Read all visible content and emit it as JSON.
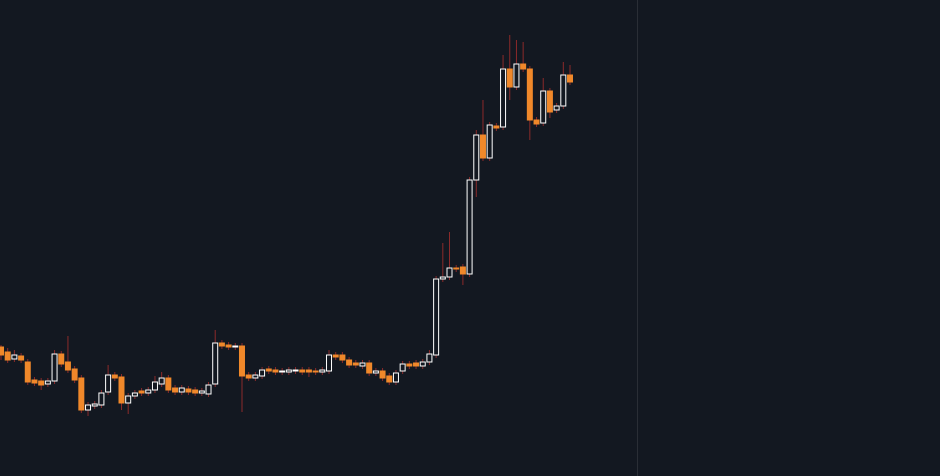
{
  "chart_data": {
    "type": "candlestick",
    "ylim": [
      0,
      476
    ],
    "up_color": "#ffffff",
    "down_color": "#f0882a",
    "wick_color": "#8b2a2a",
    "open": [
      129,
      124,
      117,
      120,
      114,
      96,
      95,
      92,
      95,
      122,
      114,
      107,
      98,
      66,
      70,
      71,
      84,
      101,
      99,
      73,
      80,
      85,
      83,
      86,
      92,
      98,
      88,
      84,
      87,
      86,
      83,
      82,
      92,
      133,
      131,
      129,
      130,
      101,
      98,
      100,
      107,
      106,
      104,
      104,
      105,
      106,
      106,
      105,
      104,
      105,
      121,
      121,
      116,
      113,
      110,
      113,
      103,
      105,
      100,
      94,
      105,
      112,
      113,
      110,
      114,
      121,
      197,
      199,
      208,
      209,
      202,
      296,
      341,
      318,
      350,
      349,
      407,
      389,
      412,
      407,
      356,
      353,
      385,
      366,
      370,
      401
    ],
    "high": [
      131,
      128,
      126,
      123,
      117,
      99,
      98,
      98,
      126,
      125,
      140,
      110,
      101,
      74,
      75,
      86,
      111,
      104,
      102,
      83,
      86,
      88,
      89,
      100,
      104,
      101,
      91,
      91,
      90,
      89,
      88,
      94,
      146,
      136,
      134,
      133,
      133,
      104,
      104,
      109,
      110,
      109,
      108,
      109,
      109,
      109,
      109,
      108,
      109,
      126,
      124,
      124,
      119,
      116,
      116,
      116,
      108,
      108,
      103,
      106,
      115,
      115,
      116,
      117,
      126,
      200,
      233,
      244,
      211,
      212,
      299,
      346,
      376,
      354,
      353,
      421,
      441,
      436,
      434,
      410,
      359,
      398,
      388,
      373,
      414,
      411
    ],
    "low": [
      116,
      113,
      114,
      113,
      91,
      90,
      86,
      89,
      92,
      109,
      103,
      93,
      63,
      60,
      67,
      68,
      81,
      95,
      66,
      62,
      77,
      80,
      80,
      83,
      89,
      83,
      81,
      81,
      81,
      80,
      80,
      79,
      89,
      127,
      126,
      126,
      64,
      95,
      95,
      97,
      102,
      101,
      101,
      101,
      102,
      101,
      99,
      101,
      101,
      102,
      116,
      113,
      108,
      108,
      107,
      100,
      100,
      95,
      91,
      91,
      102,
      107,
      107,
      107,
      111,
      118,
      194,
      196,
      204,
      191,
      199,
      279,
      315,
      315,
      345,
      346,
      376,
      386,
      404,
      336,
      349,
      350,
      358,
      363,
      367,
      391
    ],
    "close": [
      121,
      116,
      121,
      116,
      94,
      93,
      91,
      95,
      122,
      112,
      106,
      96,
      66,
      71,
      72,
      83,
      101,
      98,
      73,
      80,
      83,
      83,
      86,
      94,
      98,
      86,
      84,
      88,
      84,
      83,
      85,
      91,
      133,
      130,
      129,
      130,
      100,
      98,
      101,
      106,
      105,
      104,
      105,
      106,
      106,
      104,
      104,
      104,
      106,
      121,
      119,
      116,
      111,
      111,
      113,
      103,
      105,
      98,
      94,
      103,
      112,
      110,
      110,
      114,
      122,
      197,
      199,
      208,
      207,
      202,
      296,
      341,
      318,
      351,
      348,
      407,
      389,
      412,
      407,
      356,
      352,
      385,
      364,
      370,
      401,
      394
    ]
  }
}
